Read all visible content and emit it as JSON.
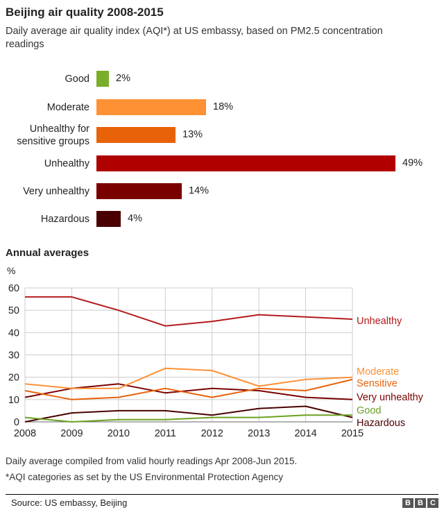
{
  "title": "Beijing air quality 2008-2015",
  "subtitle": "Daily average air quality index (AQI*) at US embassy, based on PM2.5 concentration readings",
  "chart_data": [
    {
      "type": "bar",
      "orientation": "horizontal",
      "title": "Beijing air quality 2008-2015",
      "categories": [
        "Good",
        "Moderate",
        "Unhealthy for sensitive groups",
        "Unhealthy",
        "Very unhealthy",
        "Hazardous"
      ],
      "values": [
        2,
        18,
        13,
        49,
        14,
        4
      ],
      "value_labels": [
        "2%",
        "18%",
        "13%",
        "49%",
        "14%",
        "4%"
      ],
      "unit": "%",
      "colors": [
        "#7aae2a",
        "#ff9135",
        "#e8620a",
        "#b00000",
        "#7a0000",
        "#4a0000"
      ]
    },
    {
      "type": "line",
      "title": "Annual averages",
      "ylabel": "%",
      "x": [
        2008,
        2009,
        2010,
        2011,
        2012,
        2013,
        2014,
        2015
      ],
      "x_tick_labels": [
        "2008",
        "2009",
        "2010",
        "2011",
        "2012",
        "2013",
        "2014",
        "2015"
      ],
      "ylim": [
        0,
        60
      ],
      "y_ticks": [
        0,
        10,
        20,
        30,
        40,
        50,
        60
      ],
      "y_tick_labels": [
        "0",
        "10",
        "20",
        "30",
        "40",
        "50",
        "60"
      ],
      "grid": true,
      "series": [
        {
          "name": "Unhealthy",
          "color": "#b31b1b",
          "values": [
            56,
            56,
            50,
            43,
            45,
            48,
            47,
            46
          ]
        },
        {
          "name": "Moderate",
          "color": "#ff9135",
          "values": [
            17,
            15,
            15,
            24,
            23,
            16,
            19,
            20
          ]
        },
        {
          "name": "Sensitive",
          "color": "#e8620a",
          "values": [
            14,
            10,
            11,
            15,
            11,
            15,
            14,
            19
          ]
        },
        {
          "name": "Very unhealthy",
          "color": "#7a0000",
          "values": [
            11,
            15,
            17,
            13,
            15,
            14,
            11,
            10
          ]
        },
        {
          "name": "Good",
          "color": "#6aa121",
          "values": [
            2,
            0,
            1,
            1,
            2,
            2,
            3,
            3
          ]
        },
        {
          "name": "Hazardous",
          "color": "#4a0000",
          "values": [
            0,
            4,
            5,
            5,
            3,
            6,
            7,
            2
          ]
        }
      ]
    }
  ],
  "footnotes": [
    "Daily average compiled from valid hourly readings Apr 2008-Jun 2015.",
    "*AQI categories as set by the US Environmental Protection Agency"
  ],
  "source": "Source: US embassy, Beijing",
  "logo": [
    "B",
    "B",
    "C"
  ]
}
